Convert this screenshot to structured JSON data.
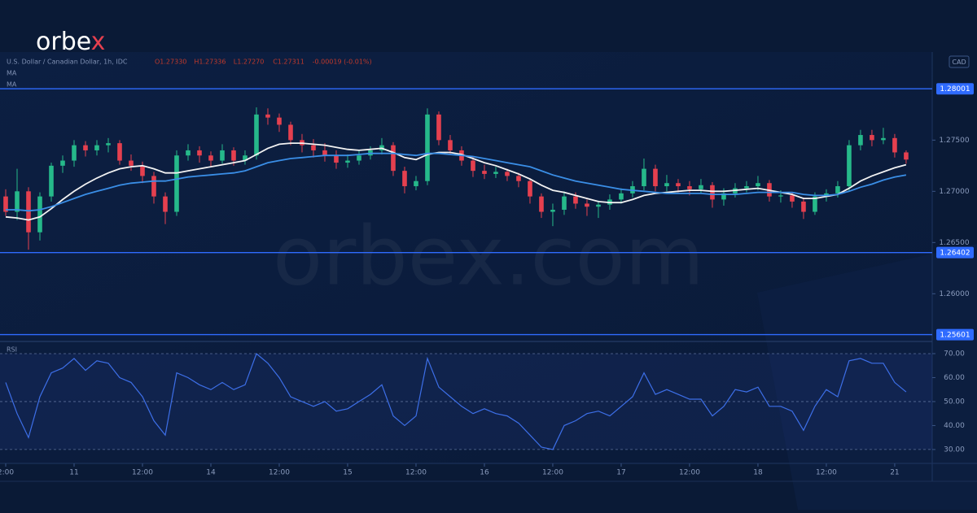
{
  "logo": {
    "text": "orbe",
    "accent": "x"
  },
  "watermark": "orbex.com",
  "chart_data": [
    {
      "type": "candlestick",
      "legend_header": "U.S. Dollar / Canadian Dollar, 1h, IDC",
      "ohlc_readout": [
        "O1.27330",
        "H1.27336",
        "L1.27270",
        "C1.27311",
        "-0.00019 (-0.01%)"
      ],
      "currency": "CAD",
      "up_color": "#26b98a",
      "down_color": "#e5404f",
      "open": [
        1.2695,
        1.268,
        1.27,
        1.266,
        1.2695,
        1.2725,
        1.273,
        1.2745,
        1.274,
        1.2745,
        1.2747,
        1.273,
        1.2725,
        1.2715,
        1.2695,
        1.268,
        1.2735,
        1.274,
        1.2735,
        1.273,
        1.274,
        1.273,
        1.2735,
        1.2775,
        1.2772,
        1.2765,
        1.275,
        1.2745,
        1.274,
        1.2735,
        1.2728,
        1.273,
        1.2735,
        1.274,
        1.2745,
        1.272,
        1.2705,
        1.271,
        1.2775,
        1.275,
        1.274,
        1.273,
        1.272,
        1.2717,
        1.2719,
        1.2715,
        1.271,
        1.2695,
        1.268,
        1.2682,
        1.2695,
        1.2688,
        1.2685,
        1.2687,
        1.2692,
        1.2698,
        1.2705,
        1.2722,
        1.2705,
        1.2708,
        1.2705,
        1.2702,
        1.2706,
        1.2692,
        1.2698,
        1.2703,
        1.2705,
        1.2708,
        1.2695,
        1.2696,
        1.269,
        1.268,
        1.2695,
        1.2698,
        1.2705,
        1.2745,
        1.2755,
        1.275,
        1.2752,
        1.2738
      ],
      "high": [
        1.2702,
        1.2722,
        1.2704,
        1.2699,
        1.2728,
        1.2735,
        1.275,
        1.2749,
        1.275,
        1.2752,
        1.275,
        1.2736,
        1.2729,
        1.2719,
        1.2699,
        1.274,
        1.2746,
        1.2744,
        1.2739,
        1.2746,
        1.2743,
        1.274,
        1.2782,
        1.2781,
        1.2776,
        1.2768,
        1.2756,
        1.2751,
        1.2747,
        1.274,
        1.2736,
        1.274,
        1.2744,
        1.2752,
        1.2748,
        1.2724,
        1.2715,
        1.2781,
        1.2778,
        1.2755,
        1.2744,
        1.2734,
        1.2726,
        1.2724,
        1.2722,
        1.2718,
        1.2713,
        1.2698,
        1.2688,
        1.27,
        1.2699,
        1.2692,
        1.2691,
        1.2697,
        1.2703,
        1.271,
        1.2732,
        1.2726,
        1.2716,
        1.2712,
        1.271,
        1.2712,
        1.2709,
        1.2703,
        1.2708,
        1.271,
        1.2715,
        1.2711,
        1.2701,
        1.2699,
        1.2694,
        1.2699,
        1.2702,
        1.271,
        1.275,
        1.276,
        1.276,
        1.2762,
        1.2756,
        1.274
      ],
      "low": [
        1.2676,
        1.2672,
        1.2643,
        1.2652,
        1.269,
        1.2718,
        1.2724,
        1.2734,
        1.2735,
        1.2738,
        1.2726,
        1.272,
        1.2708,
        1.2688,
        1.2668,
        1.2676,
        1.273,
        1.2728,
        1.2724,
        1.2727,
        1.2725,
        1.2726,
        1.2731,
        1.2765,
        1.2758,
        1.2745,
        1.2738,
        1.2733,
        1.2729,
        1.2722,
        1.2723,
        1.2726,
        1.2731,
        1.2736,
        1.2715,
        1.2698,
        1.2701,
        1.2706,
        1.2745,
        1.2736,
        1.2725,
        1.2714,
        1.2712,
        1.2713,
        1.271,
        1.2704,
        1.2688,
        1.2674,
        1.2666,
        1.2677,
        1.2683,
        1.2676,
        1.2674,
        1.2682,
        1.2688,
        1.2694,
        1.2701,
        1.27,
        1.27,
        1.2699,
        1.2696,
        1.2698,
        1.2684,
        1.2686,
        1.2694,
        1.2699,
        1.2701,
        1.269,
        1.2689,
        1.2684,
        1.2673,
        1.2677,
        1.269,
        1.2694,
        1.27,
        1.274,
        1.2744,
        1.2746,
        1.2733,
        1.2727
      ],
      "close": [
        1.268,
        1.27,
        1.266,
        1.2695,
        1.2725,
        1.273,
        1.2745,
        1.274,
        1.2745,
        1.2747,
        1.273,
        1.2725,
        1.2715,
        1.2695,
        1.268,
        1.2735,
        1.274,
        1.2735,
        1.273,
        1.274,
        1.273,
        1.2735,
        1.2775,
        1.2772,
        1.2765,
        1.275,
        1.2745,
        1.274,
        1.2735,
        1.2728,
        1.273,
        1.2735,
        1.274,
        1.2745,
        1.272,
        1.2705,
        1.271,
        1.2775,
        1.275,
        1.274,
        1.273,
        1.272,
        1.2717,
        1.2719,
        1.2715,
        1.271,
        1.2695,
        1.268,
        1.2682,
        1.2695,
        1.2688,
        1.2685,
        1.2687,
        1.2692,
        1.2698,
        1.2705,
        1.2722,
        1.2705,
        1.2708,
        1.2705,
        1.2702,
        1.2706,
        1.2692,
        1.2698,
        1.2703,
        1.2705,
        1.2708,
        1.2695,
        1.2696,
        1.269,
        1.268,
        1.2695,
        1.2698,
        1.2705,
        1.2745,
        1.2755,
        1.275,
        1.2752,
        1.2738,
        1.2731
      ],
      "lines": [
        {
          "label": "MA",
          "color": "#f2f2f2",
          "values": [
            1.2675,
            1.2674,
            1.2672,
            1.2675,
            1.2683,
            1.2692,
            1.27,
            1.2707,
            1.2713,
            1.2718,
            1.2722,
            1.2724,
            1.2725,
            1.2722,
            1.2718,
            1.2718,
            1.272,
            1.2722,
            1.2724,
            1.2726,
            1.2728,
            1.273,
            1.2736,
            1.2742,
            1.2746,
            1.2747,
            1.2747,
            1.2746,
            1.2745,
            1.2743,
            1.2741,
            1.274,
            1.2741,
            1.2742,
            1.2738,
            1.2733,
            1.2731,
            1.2736,
            1.2738,
            1.2738,
            1.2736,
            1.2732,
            1.2728,
            1.2725,
            1.2721,
            1.2717,
            1.2712,
            1.2706,
            1.2701,
            1.2699,
            1.2696,
            1.2693,
            1.269,
            1.2689,
            1.2689,
            1.2692,
            1.2696,
            1.2698,
            1.2699,
            1.27,
            1.2701,
            1.2701,
            1.27,
            1.27,
            1.2701,
            1.2702,
            1.2703,
            1.2701,
            1.2699,
            1.2697,
            1.2693,
            1.2693,
            1.2695,
            1.2697,
            1.2703,
            1.271,
            1.2715,
            1.2719,
            1.2723,
            1.2726
          ]
        },
        {
          "label": "MA",
          "color": "#3a8ee6",
          "values": [
            1.2682,
            1.2682,
            1.2681,
            1.2682,
            1.2685,
            1.2689,
            1.2693,
            1.2697,
            1.27,
            1.2703,
            1.2706,
            1.2708,
            1.2709,
            1.271,
            1.271,
            1.2712,
            1.2714,
            1.2715,
            1.2716,
            1.2717,
            1.2718,
            1.272,
            1.2724,
            1.2728,
            1.273,
            1.2732,
            1.2733,
            1.2734,
            1.2735,
            1.2735,
            1.2735,
            1.2736,
            1.2737,
            1.2737,
            1.2737,
            1.2736,
            1.2735,
            1.2737,
            1.2737,
            1.2736,
            1.2735,
            1.2734,
            1.2732,
            1.273,
            1.2728,
            1.2726,
            1.2724,
            1.272,
            1.2716,
            1.2713,
            1.271,
            1.2708,
            1.2706,
            1.2704,
            1.2702,
            1.2701,
            1.27,
            1.2699,
            1.2698,
            1.2698,
            1.2698,
            1.2698,
            1.2697,
            1.2697,
            1.2697,
            1.2698,
            1.2699,
            1.2699,
            1.2699,
            1.2699,
            1.2697,
            1.2696,
            1.2696,
            1.2697,
            1.27,
            1.2704,
            1.2707,
            1.2711,
            1.2714,
            1.2716
          ]
        }
      ],
      "levels": [
        {
          "value": 1.28001,
          "label": "1.28001"
        },
        {
          "value": 1.26402,
          "label": "1.26402"
        },
        {
          "value": 1.25601,
          "label": "1.25601"
        }
      ],
      "level_color": "#2f6bff",
      "ylim": [
        1.2555,
        1.2836
      ],
      "yticks": [
        {
          "value": 1.275,
          "label": "1.27500"
        },
        {
          "value": 1.27,
          "label": "1.27000"
        },
        {
          "value": 1.265,
          "label": "1.26500"
        },
        {
          "value": 1.26,
          "label": "1.26000"
        }
      ],
      "xlim": [
        -0.5,
        81.29
      ],
      "xticks": [
        {
          "value": 0,
          "label": "2:00"
        },
        {
          "value": 6,
          "label": "11"
        },
        {
          "value": 12,
          "label": "12:00"
        },
        {
          "value": 18,
          "label": "14"
        },
        {
          "value": 24,
          "label": "12:00"
        },
        {
          "value": 30,
          "label": "15"
        },
        {
          "value": 36,
          "label": "12:00"
        },
        {
          "value": 42,
          "label": "16"
        },
        {
          "value": 48,
          "label": "12:00"
        },
        {
          "value": 54,
          "label": "17"
        },
        {
          "value": 60,
          "label": "12:00"
        },
        {
          "value": 66,
          "label": "18"
        },
        {
          "value": 72,
          "label": "12:00"
        },
        {
          "value": 78,
          "label": "21"
        }
      ]
    },
    {
      "type": "line",
      "label": "RSI",
      "color": "#3d6fe8",
      "values": [
        58,
        45,
        35,
        52,
        62,
        64,
        68,
        63,
        67,
        66,
        60,
        58,
        52,
        42,
        36,
        62,
        60,
        57,
        55,
        58,
        55,
        57,
        70,
        66,
        60,
        52,
        50,
        48,
        50,
        46,
        47,
        50,
        53,
        57,
        44,
        40,
        44,
        68,
        56,
        52,
        48,
        45,
        47,
        45,
        44,
        41,
        36,
        31,
        30,
        40,
        42,
        45,
        46,
        44,
        48,
        52,
        62,
        53,
        55,
        53,
        51,
        51,
        44,
        48,
        55,
        54,
        56,
        48,
        48,
        46,
        38,
        48,
        55,
        52,
        67,
        68,
        66,
        66,
        58,
        54
      ],
      "band": [
        30,
        70
      ],
      "dashed": [
        30,
        50,
        70
      ],
      "ylim": [
        24.2,
        74.4
      ],
      "yticks": [
        {
          "value": 70,
          "label": "70.00"
        },
        {
          "value": 60,
          "label": "60.00"
        },
        {
          "value": 50,
          "label": "50.00"
        },
        {
          "value": 40,
          "label": "40.00"
        },
        {
          "value": 30,
          "label": "30.00"
        }
      ],
      "xlim": [
        -0.5,
        81.29
      ]
    }
  ]
}
